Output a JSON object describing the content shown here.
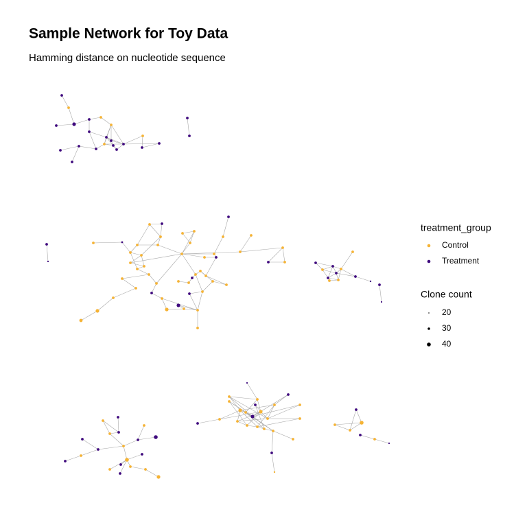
{
  "chart_data": {
    "type": "network",
    "title": "Sample Network for Toy Data",
    "subtitle": "Hamming distance on nucleotide sequence",
    "legend": {
      "color": {
        "title": "treatment_group",
        "entries": [
          {
            "label": "Control",
            "color": "#f5b335"
          },
          {
            "label": "Treatment",
            "color": "#3f0a7e"
          }
        ]
      },
      "size": {
        "title": "Clone count",
        "values": [
          20,
          30,
          40
        ]
      }
    }
  }
}
